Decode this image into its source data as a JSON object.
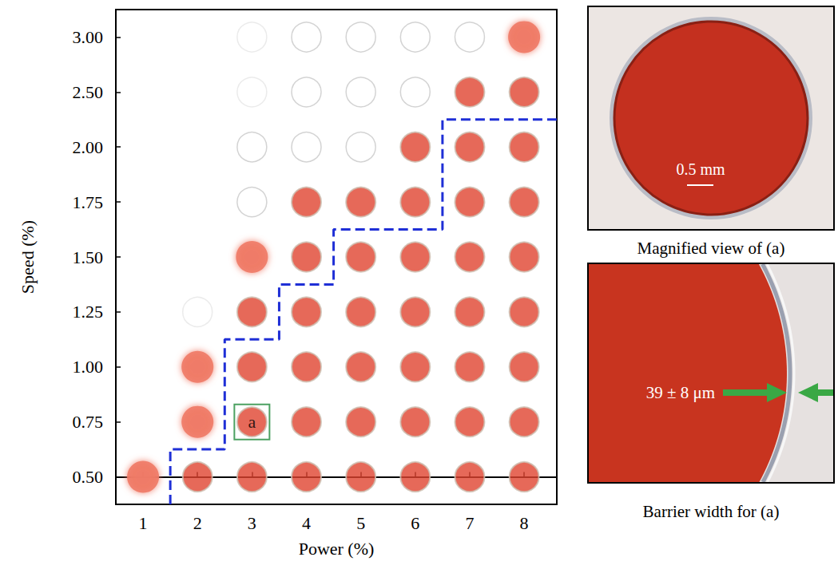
{
  "chart_data": {
    "type": "scatter",
    "xlabel": "Power (%)",
    "ylabel": "Speed (%)",
    "xlim": [
      0.5,
      8.6
    ],
    "xticks": [
      1,
      2,
      3,
      4,
      5,
      6,
      7,
      8
    ],
    "categories": [
      "0.50",
      "0.75",
      "1.00",
      "1.25",
      "1.50",
      "1.75",
      "2.00",
      "2.50",
      "3.00"
    ],
    "grid": false,
    "x": [
      1,
      2,
      3,
      4,
      5,
      6,
      7,
      8,
      2,
      3,
      4,
      5,
      6,
      7,
      8,
      2,
      3,
      4,
      5,
      6,
      7,
      8,
      2,
      3,
      4,
      5,
      6,
      7,
      8,
      3,
      4,
      5,
      6,
      7,
      8,
      3,
      4,
      5,
      6,
      7,
      8,
      3,
      4,
      5,
      6,
      7,
      8,
      3,
      4,
      5,
      6,
      7,
      8,
      3,
      4,
      5,
      6,
      7,
      8
    ],
    "y": [
      "0.50",
      "0.50",
      "0.50",
      "0.50",
      "0.50",
      "0.50",
      "0.50",
      "0.50",
      "0.75",
      "0.75",
      "0.75",
      "0.75",
      "0.75",
      "0.75",
      "0.75",
      "1.00",
      "1.00",
      "1.00",
      "1.00",
      "1.00",
      "1.00",
      "1.00",
      "1.25",
      "1.25",
      "1.25",
      "1.25",
      "1.25",
      "1.25",
      "1.25",
      "1.50",
      "1.50",
      "1.50",
      "1.50",
      "1.50",
      "1.50",
      "1.75",
      "1.75",
      "1.75",
      "1.75",
      "1.75",
      "1.75",
      "2.00",
      "2.00",
      "2.00",
      "2.00",
      "2.00",
      "2.00",
      "2.50",
      "2.50",
      "2.50",
      "2.50",
      "2.50",
      "2.50",
      "3.00",
      "3.00",
      "3.00",
      "3.00",
      "3.00",
      "3.00"
    ],
    "colors": [
      "#f07a66",
      "#e0432f",
      "#e0432f",
      "#e0432f",
      "#e0432f",
      "#e0432f",
      "#e0432f",
      "#e0432f",
      "#f07a66",
      "#e0432f",
      "#e0432f",
      "#e0432f",
      "#e0432f",
      "#e0432f",
      "#e0432f",
      "#f07a66",
      "#e0432f",
      "#e0432f",
      "#e0432f",
      "#e0432f",
      "#e0432f",
      "#e0432f",
      "#e6e6e6",
      "#e0432f",
      "#e0432f",
      "#e0432f",
      "#e0432f",
      "#e0432f",
      "#e0432f",
      "#f07a66",
      "#e0432f",
      "#e0432f",
      "#e0432f",
      "#e0432f",
      "#e0432f",
      "#c8c8c8",
      "#e0432f",
      "#e0432f",
      "#e0432f",
      "#e0432f",
      "#e0432f",
      "#c8c8c8",
      "#c8c8c8",
      "#c8c8c8",
      "#e0432f",
      "#e0432f",
      "#e0432f",
      "#e6e6e6",
      "#c8c8c8",
      "#c8c8c8",
      "#c8c8c8",
      "#e0432f",
      "#e0432f",
      "#e6e6e6",
      "#c8c8c8",
      "#c8c8c8",
      "#c8c8c8",
      "#c8c8c8",
      "#f07a66"
    ],
    "markers": [
      "blob",
      "circle",
      "circle",
      "circle",
      "circle",
      "circle",
      "circle",
      "circle",
      "blob",
      "circle",
      "circle",
      "circle",
      "circle",
      "circle",
      "circle",
      "blob",
      "circle",
      "circle",
      "circle",
      "circle",
      "circle",
      "circle",
      "emptyCircle",
      "circle",
      "circle",
      "circle",
      "circle",
      "circle",
      "circle",
      "blob",
      "circle",
      "circle",
      "circle",
      "circle",
      "circle",
      "emptyCircle",
      "circle",
      "circle",
      "circle",
      "circle",
      "circle",
      "emptyCircle",
      "emptyCircle",
      "emptyCircle",
      "circle",
      "circle",
      "circle",
      "emptyCircle",
      "emptyCircle",
      "emptyCircle",
      "emptyCircle",
      "circle",
      "circle",
      "emptyCircle",
      "emptyCircle",
      "emptyCircle",
      "emptyCircle",
      "emptyCircle",
      "blob"
    ],
    "boundary": {
      "color": "#1f2fd6",
      "line_style": "dashed",
      "max_speed": [
        null,
        "0.50",
        "1.00",
        "1.25",
        "1.50",
        "1.50",
        "2.00",
        "2.00"
      ]
    },
    "annotations": [
      {
        "x": 3,
        "y": "0.75",
        "text": "a",
        "color": "#1f8a3a"
      }
    ]
  },
  "panels": [
    {
      "caption": "Magnified view of (a)",
      "scale_bar": "0.5 mm"
    },
    {
      "caption": "Barrier width for (a)",
      "measurement": "39 ± 8 μm"
    }
  ]
}
